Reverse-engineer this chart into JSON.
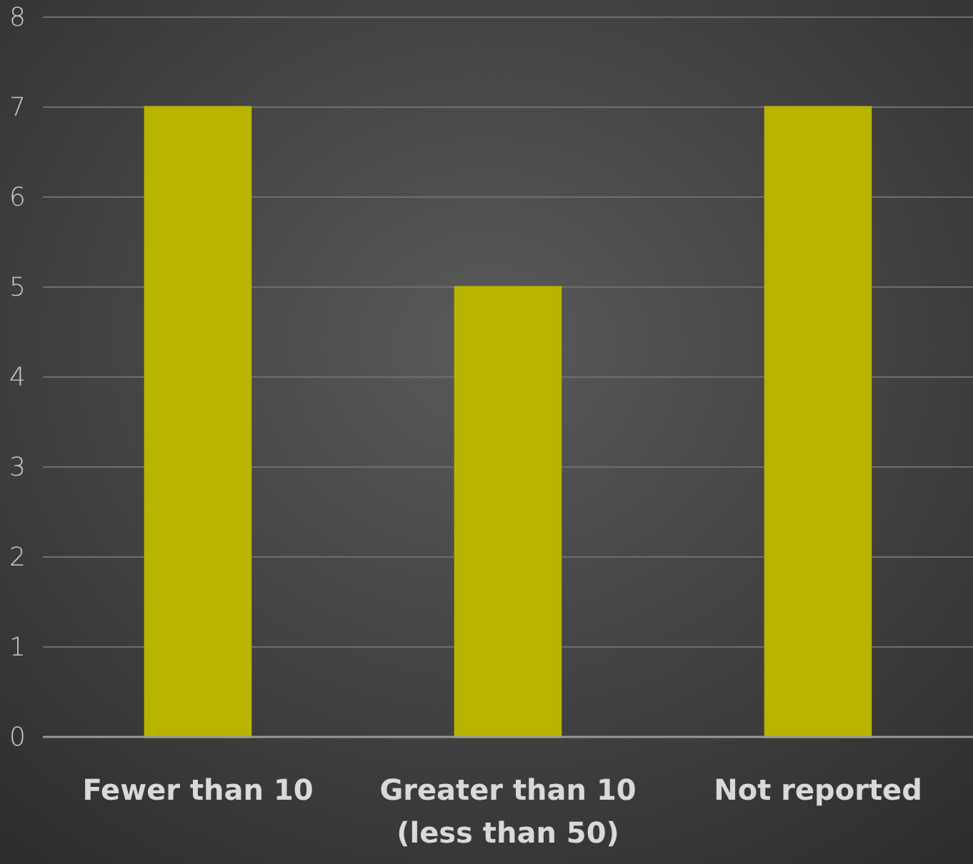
{
  "chart_data": {
    "type": "bar",
    "categories": [
      "Fewer than 10",
      "Greater than 10 (less than 50)",
      "Not reported"
    ],
    "values": [
      7,
      5,
      7
    ],
    "color": "#b8b400",
    "ylim": [
      0,
      8
    ],
    "yticks": [
      0,
      1,
      2,
      3,
      4,
      5,
      6,
      7,
      8
    ],
    "grid": "y"
  }
}
